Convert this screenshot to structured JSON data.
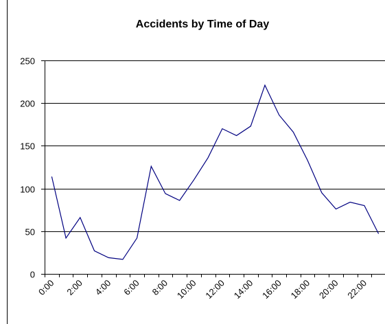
{
  "chart_data": {
    "type": "line",
    "title": "Accidents by Time of Day",
    "categories": [
      "0:00",
      null,
      "2:00",
      null,
      "4:00",
      null,
      "6:00",
      null,
      "8:00",
      null,
      "10:00",
      null,
      "12:00",
      null,
      "14:00",
      null,
      "16:00",
      null,
      "18:00",
      null,
      "20:00",
      null,
      "22:00",
      null
    ],
    "series": [
      {
        "name": "Accidents",
        "color": "#000080",
        "values": [
          114,
          42,
          66,
          27,
          19,
          17,
          42,
          126,
          94,
          86,
          110,
          136,
          170,
          162,
          173,
          221,
          186,
          166,
          133,
          95,
          76,
          84,
          80,
          47
        ]
      }
    ],
    "ylim": [
      0,
      250
    ],
    "yticks": [
      0,
      50,
      100,
      150,
      200,
      250
    ],
    "grid": true
  }
}
